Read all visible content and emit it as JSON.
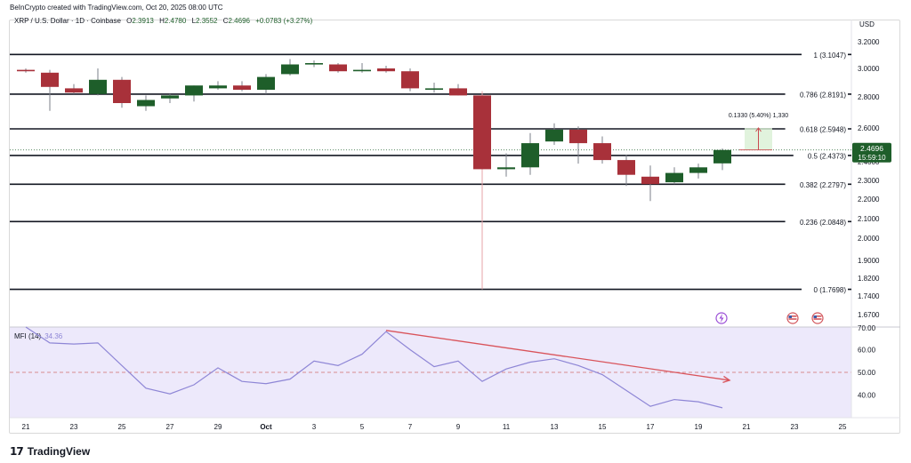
{
  "header": {
    "credit": "BeInCrypto created with TradingView.com, Oct 20, 2025 08:00 UTC"
  },
  "footer": {
    "logo_mark": "17",
    "brand": "TradingView"
  },
  "colors": {
    "up": "#1e5e2a",
    "down": "#a8313a",
    "fib": "#131722",
    "mfi_line": "#8e86d6",
    "mfi_band": "#ede9fb",
    "mfi_mid": "#d88a8f",
    "divergence": "#d9535a",
    "price_tag": "#1e5e2a",
    "ghost_box": "#d9f0d5",
    "ghost_arrow": "#c94a50"
  },
  "chart_data": [
    {
      "type": "candlestick",
      "symbol": {
        "pair": "XRP / U.S. Dollar · 1D · Coinbase",
        "o_label": "O",
        "o": "2.3913",
        "h_label": "H",
        "h": "2.4780",
        "l_label": "L",
        "l": "2.3552",
        "c_label": "C",
        "c": "2.4696",
        "change": "+0.0783 (+3.27%)"
      },
      "currency": "USD",
      "ylim": [
        1.63,
        3.26
      ],
      "y_ticks": [
        "3.2000",
        "3.0000",
        "2.8000",
        "2.6000",
        "2.4000",
        "2.3000",
        "2.2000",
        "2.1000",
        "2.0000",
        "1.9000",
        "1.8200",
        "1.7400",
        "1.6700"
      ],
      "y_tick_values": [
        3.2,
        3.0,
        2.8,
        2.6,
        2.4,
        2.3,
        2.2,
        2.1,
        2.0,
        1.9,
        1.82,
        1.74,
        1.67
      ],
      "x_ticks": [
        "21",
        "23",
        "25",
        "27",
        "29",
        "Oct",
        "3",
        "5",
        "7",
        "9",
        "11",
        "13",
        "15",
        "17",
        "19",
        "21",
        "23",
        "25"
      ],
      "x_tick_days": [
        0,
        2,
        4,
        6,
        8,
        10,
        12,
        14,
        16,
        18,
        20,
        22,
        24,
        26,
        28,
        30,
        32,
        34
      ],
      "candles": [
        {
          "day": 0,
          "o": 2.99,
          "h": 3.0,
          "l": 2.97,
          "c": 2.98
        },
        {
          "day": 1,
          "o": 2.97,
          "h": 2.99,
          "l": 2.71,
          "c": 2.87
        },
        {
          "day": 2,
          "o": 2.86,
          "h": 2.89,
          "l": 2.82,
          "c": 2.83
        },
        {
          "day": 3,
          "o": 2.82,
          "h": 3.0,
          "l": 2.81,
          "c": 2.92
        },
        {
          "day": 4,
          "o": 2.92,
          "h": 2.94,
          "l": 2.73,
          "c": 2.76
        },
        {
          "day": 5,
          "o": 2.74,
          "h": 2.81,
          "l": 2.71,
          "c": 2.78
        },
        {
          "day": 6,
          "o": 2.79,
          "h": 2.82,
          "l": 2.76,
          "c": 2.81
        },
        {
          "day": 7,
          "o": 2.81,
          "h": 2.88,
          "l": 2.77,
          "c": 2.88
        },
        {
          "day": 8,
          "o": 2.86,
          "h": 2.91,
          "l": 2.85,
          "c": 2.88
        },
        {
          "day": 9,
          "o": 2.88,
          "h": 2.91,
          "l": 2.84,
          "c": 2.85
        },
        {
          "day": 10,
          "o": 2.85,
          "h": 2.96,
          "l": 2.82,
          "c": 2.94
        },
        {
          "day": 11,
          "o": 2.96,
          "h": 3.07,
          "l": 2.95,
          "c": 3.03
        },
        {
          "day": 12,
          "o": 3.03,
          "h": 3.06,
          "l": 3.01,
          "c": 3.04
        },
        {
          "day": 13,
          "o": 3.03,
          "h": 3.04,
          "l": 2.97,
          "c": 2.98
        },
        {
          "day": 14,
          "o": 2.99,
          "h": 3.04,
          "l": 2.97,
          "c": 2.99
        },
        {
          "day": 15,
          "o": 3.0,
          "h": 3.02,
          "l": 2.97,
          "c": 2.98
        },
        {
          "day": 16,
          "o": 2.98,
          "h": 3.0,
          "l": 2.84,
          "c": 2.86
        },
        {
          "day": 17,
          "o": 2.85,
          "h": 2.9,
          "l": 2.83,
          "c": 2.86
        },
        {
          "day": 18,
          "o": 2.86,
          "h": 2.89,
          "l": 2.81,
          "c": 2.81
        },
        {
          "day": 19,
          "o": 2.81,
          "h": 2.84,
          "l": 1.77,
          "c": 2.36
        },
        {
          "day": 20,
          "o": 2.36,
          "h": 2.45,
          "l": 2.32,
          "c": 2.37
        },
        {
          "day": 21,
          "o": 2.37,
          "h": 2.57,
          "l": 2.33,
          "c": 2.51
        },
        {
          "day": 22,
          "o": 2.52,
          "h": 2.63,
          "l": 2.5,
          "c": 2.59
        },
        {
          "day": 23,
          "o": 2.59,
          "h": 2.61,
          "l": 2.39,
          "c": 2.51
        },
        {
          "day": 24,
          "o": 2.51,
          "h": 2.55,
          "l": 2.39,
          "c": 2.41
        },
        {
          "day": 25,
          "o": 2.41,
          "h": 2.44,
          "l": 2.27,
          "c": 2.33
        },
        {
          "day": 26,
          "o": 2.32,
          "h": 2.38,
          "l": 2.19,
          "c": 2.28
        },
        {
          "day": 27,
          "o": 2.29,
          "h": 2.37,
          "l": 2.28,
          "c": 2.34
        },
        {
          "day": 28,
          "o": 2.34,
          "h": 2.39,
          "l": 2.31,
          "c": 2.37
        },
        {
          "day": 29,
          "o": 2.3913,
          "h": 2.478,
          "l": 2.3552,
          "c": 2.4696
        }
      ],
      "fib_levels": [
        {
          "label": "1 (3.1047)",
          "value": 3.1047
        },
        {
          "label": "0.786 (2.8191)",
          "value": 2.8191
        },
        {
          "label": "0.618 (2.5948)",
          "value": 2.5948
        },
        {
          "label": "0.5 (2.4373)",
          "value": 2.4373
        },
        {
          "label": "0.382 (2.2797)",
          "value": 2.2797
        },
        {
          "label": "0.236 (2.0848)",
          "value": 2.0848
        },
        {
          "label": "0 (1.7698)",
          "value": 1.7698
        }
      ],
      "last_price": {
        "value": 2.4696,
        "price_label": "2.4696",
        "countdown": "15:59:10"
      },
      "measure": {
        "label": "0.1330 (5.40%) 1,330",
        "day_from": 30,
        "day_to": 31,
        "from": 2.47,
        "to": 2.6
      }
    },
    {
      "type": "line",
      "indicator": {
        "name": "MFI (14)",
        "value": "34.36"
      },
      "ylim": [
        30,
        70
      ],
      "y_ticks": [
        "70.00",
        "60.00",
        "50.00",
        "40.00"
      ],
      "y_tick_values": [
        70,
        60,
        50,
        40
      ],
      "days": [
        0,
        1,
        2,
        3,
        5,
        6,
        7,
        8,
        9,
        10,
        11,
        12,
        13,
        14,
        15,
        16,
        17,
        18,
        19,
        20,
        21,
        22,
        23,
        24,
        25,
        26,
        27,
        28,
        29
      ],
      "values": [
        71,
        63,
        62.5,
        63,
        43,
        40.5,
        44.5,
        52,
        46,
        45,
        47,
        55,
        53,
        58,
        68,
        60,
        52.5,
        55,
        46,
        51.5,
        54.5,
        56,
        53,
        49,
        42,
        35,
        38,
        37,
        34.36
      ],
      "divergence": {
        "day_from": 15,
        "from": 68.5,
        "day_to": 29.3,
        "to": 46.5
      }
    }
  ]
}
